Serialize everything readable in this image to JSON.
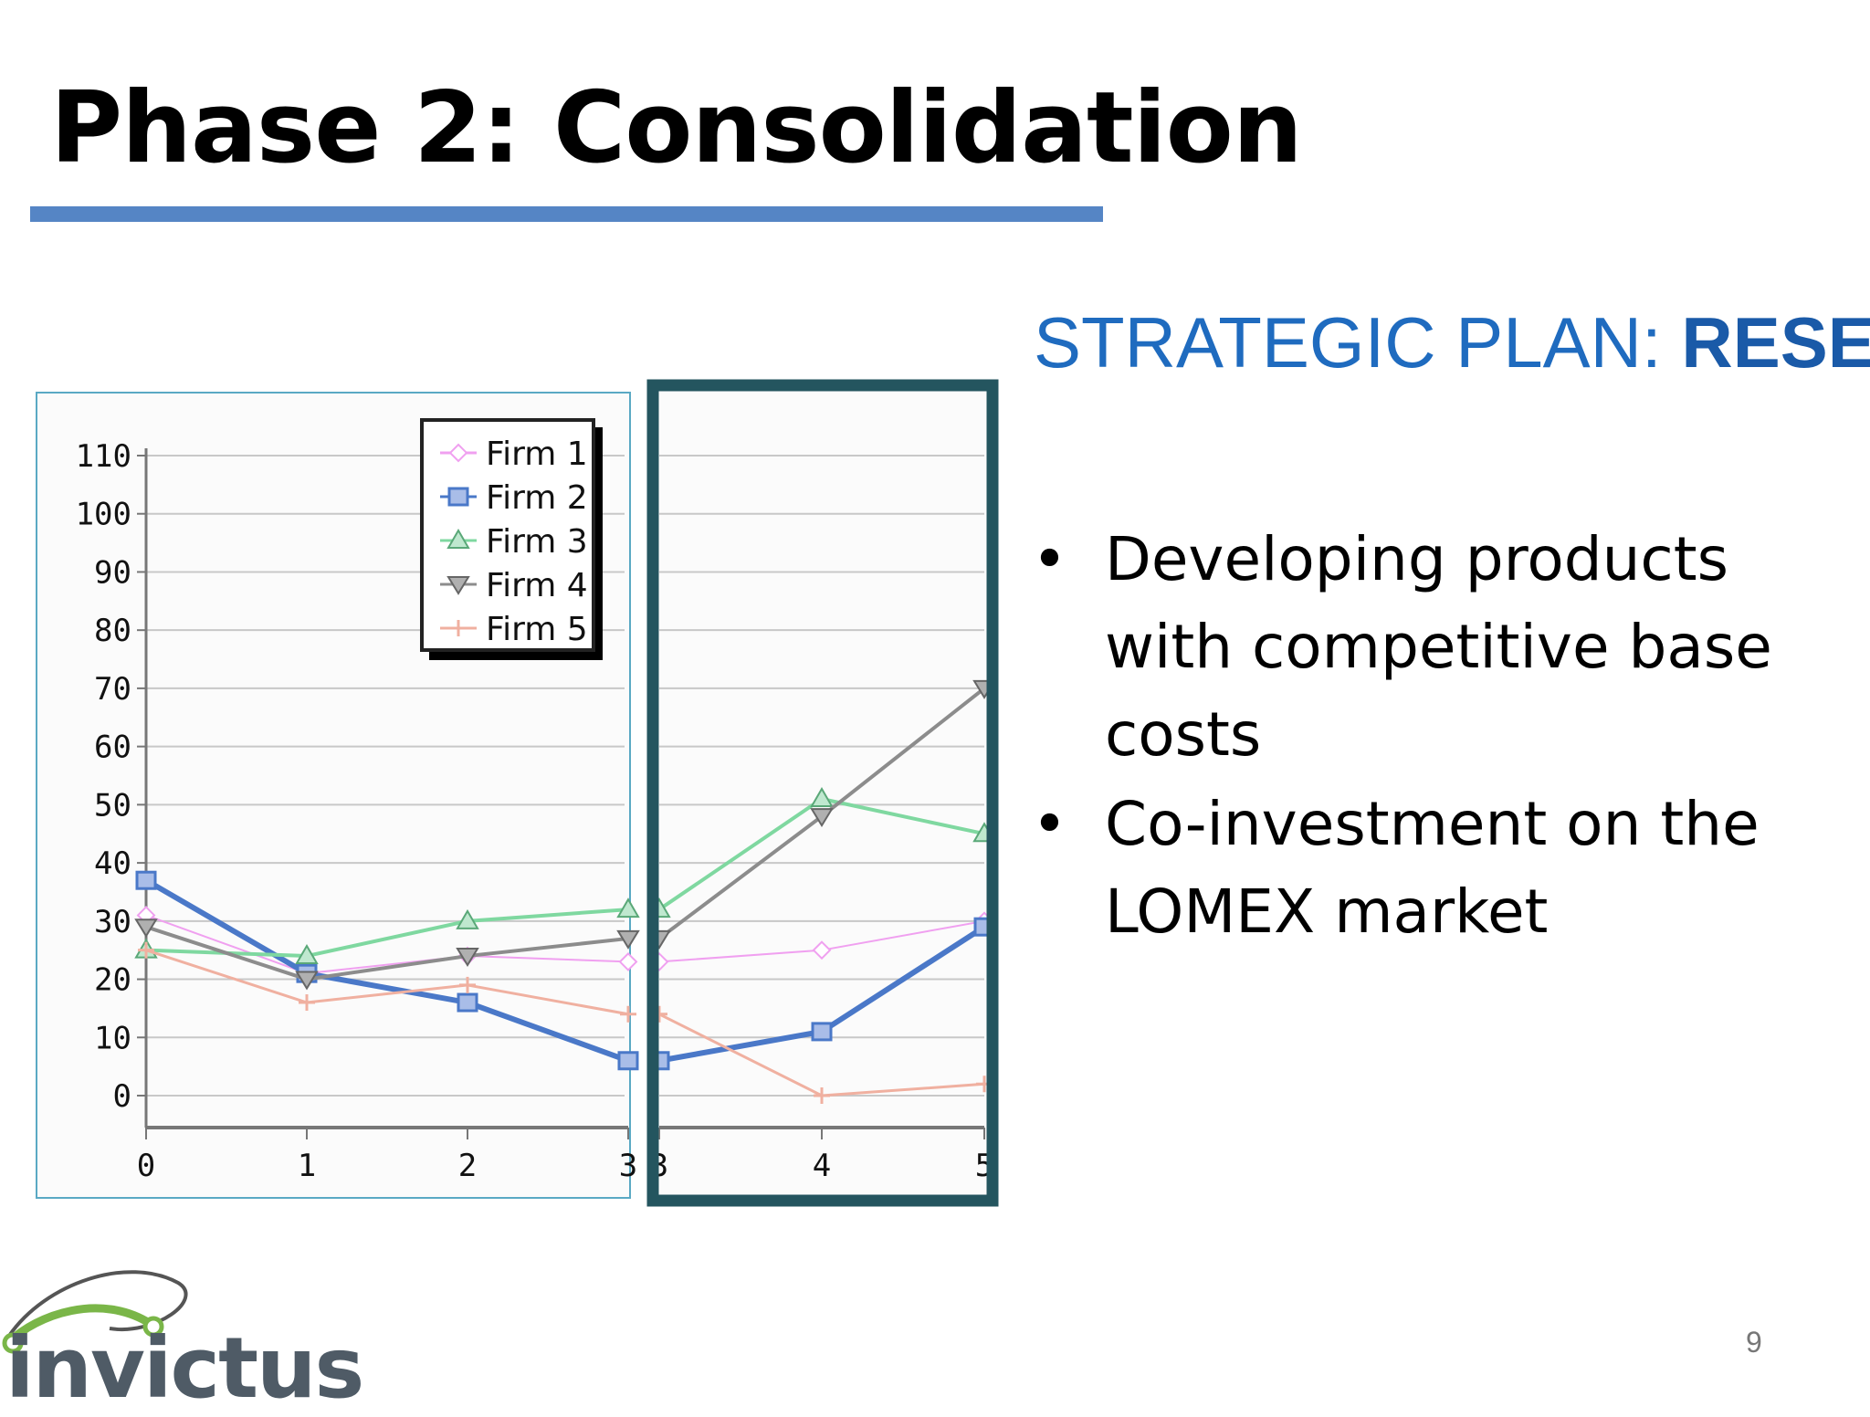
{
  "slide": {
    "title": "Phase 2: Consolidation",
    "subtitle_plain": "STRATEGIC PLAN: ",
    "subtitle_bold": "RESET",
    "bullets": [
      "Developing products with competitive base costs",
      "Co-investment on the LOMEX market"
    ],
    "page_number": "9",
    "logo_text": "invictus"
  },
  "colors": {
    "title_rule": "#5585c5",
    "subtitle": "#1f6bbf",
    "highlight_frame": "#24555f",
    "chart_border": "#5aa9c4"
  },
  "chart_data": {
    "type": "line",
    "x": [
      0,
      1,
      2,
      3,
      4,
      5
    ],
    "xticks": [
      "0",
      "1",
      "2",
      "3",
      "4",
      "5"
    ],
    "ylim": [
      0,
      110
    ],
    "yticks": [
      "0",
      "10",
      "20",
      "30",
      "40",
      "50",
      "60",
      "70",
      "80",
      "90",
      "100",
      "110"
    ],
    "grid": true,
    "legend_position": "top-right",
    "highlight_range": [
      3,
      5
    ],
    "series": [
      {
        "name": "Firm 1",
        "color": "#f0a0f0",
        "marker": "diamond",
        "width": 2,
        "values": [
          31,
          21,
          24,
          23,
          25,
          30
        ]
      },
      {
        "name": "Firm 2",
        "color": "#4a78c8",
        "marker": "square",
        "width": 6,
        "values": [
          37,
          21,
          16,
          6,
          11,
          29
        ]
      },
      {
        "name": "Firm 3",
        "color": "#7fd8a0",
        "marker": "triangle-up",
        "width": 4,
        "values": [
          25,
          24,
          30,
          32,
          51,
          45
        ]
      },
      {
        "name": "Firm 4",
        "color": "#8c8c8c",
        "marker": "triangle-down",
        "width": 4,
        "values": [
          29,
          20,
          24,
          27,
          48,
          70
        ]
      },
      {
        "name": "Firm 5",
        "color": "#f0b0a0",
        "marker": "cross",
        "width": 3,
        "values": [
          25,
          16,
          19,
          14,
          0,
          2
        ]
      }
    ]
  }
}
